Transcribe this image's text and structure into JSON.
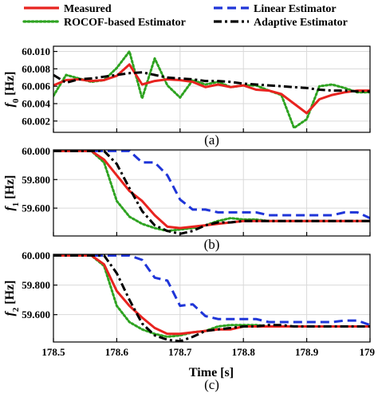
{
  "legend": [
    {
      "name": "Measured",
      "color": "#e8231f",
      "dash": "solid"
    },
    {
      "name": "Linear Estimator",
      "color": "#1f35d8",
      "dash": "dashed"
    },
    {
      "name": "ROCOF-based Estimator",
      "color": "#2ea321",
      "dash": "dotted"
    },
    {
      "name": "Adaptive Estimator",
      "color": "#000000",
      "dash": "dashdot"
    }
  ],
  "xlabel": "Time [s]",
  "chart_data": [
    {
      "type": "line",
      "caption": "(a)",
      "ylabel_main": "f",
      "ylabel_sub": "0",
      "ylabel_unit": "[Hz]",
      "xlim": [
        178.5,
        179.0
      ],
      "ylim": [
        60.0007,
        60.0106
      ],
      "yticks": [
        "60.002",
        "60.004",
        "60.006",
        "60.008",
        "60.010"
      ],
      "ytick_values": [
        60.002,
        60.004,
        60.006,
        60.008,
        60.01
      ],
      "x": [
        178.5,
        178.52,
        178.54,
        178.56,
        178.58,
        178.6,
        178.62,
        178.64,
        178.66,
        178.68,
        178.7,
        178.72,
        178.74,
        178.76,
        178.78,
        178.8,
        178.82,
        178.84,
        178.86,
        178.88,
        178.9,
        178.92,
        178.94,
        178.96,
        178.98,
        179.0
      ],
      "series": [
        {
          "name": "Measured",
          "values": [
            60.0061,
            60.0067,
            60.0068,
            60.0066,
            60.0067,
            60.0072,
            60.0085,
            60.0062,
            60.0066,
            60.0068,
            60.0067,
            60.0065,
            60.0059,
            60.0062,
            60.0059,
            60.0061,
            60.0056,
            60.0055,
            60.0051,
            60.004,
            60.0029,
            60.0045,
            60.005,
            60.0053,
            60.0055,
            60.0055
          ]
        },
        {
          "name": "Linear Estimator",
          "values": [
            null,
            null,
            null,
            null,
            null,
            null,
            null,
            null,
            null,
            null,
            null,
            null,
            null,
            null,
            null,
            null,
            null,
            null,
            null,
            null,
            null,
            null,
            null,
            null,
            null,
            null
          ]
        },
        {
          "name": "ROCOF-based Estimator",
          "values": [
            60.0049,
            60.0073,
            60.0069,
            60.0065,
            60.0067,
            60.0081,
            60.01,
            60.0046,
            60.0092,
            60.0061,
            60.0047,
            60.0067,
            60.0062,
            60.0065,
            60.0059,
            60.0061,
            60.0061,
            60.0055,
            60.005,
            60.0012,
            60.0022,
            60.006,
            60.0062,
            60.0058,
            60.0053,
            60.0053
          ]
        },
        {
          "name": "Adaptive Estimator",
          "values": [
            60.0073,
            60.0064,
            60.0068,
            60.0069,
            60.0071,
            60.0073,
            60.0075,
            60.0076,
            60.0073,
            60.007,
            60.0069,
            60.0068,
            60.0066,
            60.0066,
            60.0065,
            60.0063,
            60.0062,
            60.0061,
            60.006,
            60.0059,
            60.0058,
            60.0056,
            60.0055,
            60.0055,
            60.0054,
            60.0054
          ]
        }
      ]
    },
    {
      "type": "line",
      "caption": "(b)",
      "ylabel_main": "f",
      "ylabel_sub": "1",
      "ylabel_unit": "[Hz]",
      "xlim": [
        178.5,
        179.0
      ],
      "ylim": [
        59.405,
        60.008
      ],
      "yticks": [
        "59.600",
        "59.800",
        "60.000"
      ],
      "ytick_values": [
        59.6,
        59.8,
        60.0
      ],
      "x": [
        178.5,
        178.52,
        178.54,
        178.56,
        178.58,
        178.6,
        178.62,
        178.64,
        178.66,
        178.68,
        178.7,
        178.72,
        178.74,
        178.76,
        178.78,
        178.8,
        178.82,
        178.84,
        178.86,
        178.88,
        178.9,
        178.92,
        178.94,
        178.96,
        178.98,
        179.0
      ],
      "series": [
        {
          "name": "Measured",
          "values": [
            60.0,
            60.0,
            60.0,
            60.0,
            59.94,
            59.83,
            59.72,
            59.65,
            59.55,
            59.47,
            59.46,
            59.47,
            59.48,
            59.49,
            59.5,
            59.51,
            59.51,
            59.51,
            59.51,
            59.51,
            59.51,
            59.51,
            59.51,
            59.51,
            59.51,
            59.51
          ]
        },
        {
          "name": "Linear Estimator",
          "values": [
            60.0,
            60.0,
            60.0,
            60.0,
            60.0,
            60.0,
            60.0,
            59.92,
            59.92,
            59.83,
            59.66,
            59.59,
            59.59,
            59.57,
            59.57,
            59.57,
            59.57,
            59.55,
            59.55,
            59.55,
            59.55,
            59.55,
            59.55,
            59.57,
            59.57,
            59.53
          ]
        },
        {
          "name": "ROCOF-based Estimator",
          "values": [
            60.0,
            60.0,
            60.0,
            60.0,
            59.92,
            59.65,
            59.54,
            59.49,
            59.46,
            59.44,
            59.45,
            59.46,
            59.48,
            59.51,
            59.53,
            59.52,
            59.52,
            59.51,
            59.51,
            59.51,
            59.51,
            59.51,
            59.51,
            59.51,
            59.51,
            59.51
          ]
        },
        {
          "name": "Adaptive Estimator",
          "values": [
            60.0,
            60.0,
            60.0,
            60.0,
            60.0,
            59.91,
            59.74,
            59.58,
            59.48,
            59.44,
            59.42,
            59.44,
            59.48,
            59.5,
            59.5,
            59.51,
            59.51,
            59.51,
            59.51,
            59.51,
            59.51,
            59.51,
            59.51,
            59.51,
            59.51,
            59.51
          ]
        }
      ]
    },
    {
      "type": "line",
      "caption": "(c)",
      "ylabel_main": "f",
      "ylabel_sub": "2",
      "ylabel_unit": "[Hz]",
      "xlim": [
        178.5,
        179.0
      ],
      "xticks": [
        "178.5",
        "178.6",
        "178.7",
        "178.8",
        "178.9",
        "179"
      ],
      "xtick_values": [
        178.5,
        178.6,
        178.7,
        178.8,
        178.9,
        179.0
      ],
      "ylim": [
        59.415,
        60.008
      ],
      "yticks": [
        "59.600",
        "59.800",
        "60.000"
      ],
      "ytick_values": [
        59.6,
        59.8,
        60.0
      ],
      "x": [
        178.5,
        178.52,
        178.54,
        178.56,
        178.58,
        178.6,
        178.62,
        178.64,
        178.66,
        178.68,
        178.7,
        178.72,
        178.74,
        178.76,
        178.78,
        178.8,
        178.82,
        178.84,
        178.86,
        178.88,
        178.9,
        178.92,
        178.94,
        178.96,
        178.98,
        179.0
      ],
      "series": [
        {
          "name": "Measured",
          "values": [
            60.0,
            60.0,
            60.0,
            60.0,
            59.94,
            59.76,
            59.66,
            59.58,
            59.51,
            59.47,
            59.47,
            59.48,
            59.49,
            59.5,
            59.5,
            59.52,
            59.52,
            59.52,
            59.52,
            59.52,
            59.52,
            59.52,
            59.52,
            59.52,
            59.52,
            59.52
          ]
        },
        {
          "name": "Linear Estimator",
          "values": [
            60.0,
            60.0,
            60.0,
            60.0,
            60.0,
            60.0,
            60.0,
            59.97,
            59.85,
            59.83,
            59.66,
            59.67,
            59.59,
            59.57,
            59.57,
            59.57,
            59.57,
            59.55,
            59.55,
            59.55,
            59.55,
            59.55,
            59.55,
            59.56,
            59.56,
            59.53
          ]
        },
        {
          "name": "ROCOF-based Estimator",
          "values": [
            60.0,
            60.0,
            60.0,
            60.0,
            59.93,
            59.66,
            59.55,
            59.5,
            59.47,
            59.45,
            59.46,
            59.48,
            59.49,
            59.52,
            59.53,
            59.53,
            59.53,
            59.52,
            59.52,
            59.52,
            59.52,
            59.52,
            59.52,
            59.52,
            59.52,
            59.52
          ]
        },
        {
          "name": "Adaptive Estimator",
          "values": [
            60.0,
            60.0,
            60.0,
            60.0,
            60.0,
            59.88,
            59.7,
            59.54,
            59.46,
            59.43,
            59.42,
            59.45,
            59.49,
            59.5,
            59.51,
            59.52,
            59.52,
            59.53,
            59.53,
            59.52,
            59.52,
            59.52,
            59.52,
            59.52,
            59.52,
            59.52
          ]
        }
      ]
    }
  ]
}
